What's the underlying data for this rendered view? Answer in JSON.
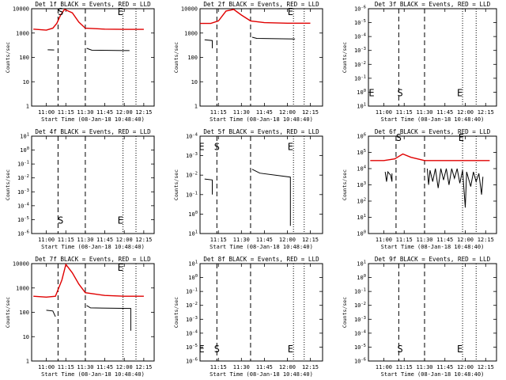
{
  "chart_data": [
    {
      "type": "line",
      "title": "Det 1f BLACK = Events, RED = LLD",
      "ylabel": "Counts/sec",
      "xlabel": "Start Time (08-Jan-18 10:48:40)",
      "scale": "log",
      "yticks": [
        "1",
        "10",
        "100",
        "1000",
        "10000"
      ],
      "ylim": [
        1,
        15000
      ],
      "xticks": [
        "11:00",
        "11:15",
        "11:30",
        "11:45",
        "12:00",
        "12:15"
      ],
      "xlim": [
        "10:48:40",
        "12:23:00"
      ],
      "dash_lines": [
        "11:09",
        "11:30"
      ],
      "dot_lines": [
        "11:59",
        "12:09"
      ],
      "markers": [
        {
          "text": "S",
          "x": "11:11",
          "y": 12000
        },
        {
          "text": "E",
          "x": "11:57",
          "y": 12000
        }
      ],
      "series": [
        {
          "name": "RED",
          "color": "#e00000",
          "points": [
            [
              "10:50",
              2000
            ],
            [
              "11:00",
              1800
            ],
            [
              "11:05",
              2200
            ],
            [
              "11:08",
              3500
            ],
            [
              "11:11",
              8000
            ],
            [
              "11:14",
              14000
            ],
            [
              "11:20",
              10000
            ],
            [
              "11:25",
              4000
            ],
            [
              "11:30",
              2200
            ],
            [
              "11:45",
              2000
            ],
            [
              "12:00",
              1950
            ],
            [
              "12:15",
              1950
            ]
          ]
        },
        {
          "name": "BLACK",
          "color": "#000000",
          "segments": [
            [
              [
                "11:01",
                260
              ],
              [
                "11:06",
                255
              ]
            ],
            [
              [
                "11:31",
                300
              ],
              [
                "11:35",
                250
              ],
              [
                "12:00",
                240
              ],
              [
                "12:04",
                240
              ]
            ]
          ]
        }
      ]
    },
    {
      "type": "line",
      "title": "Det 2f BLACK = Events, RED = LLD",
      "ylabel": "Counts/sec",
      "xlabel": "Start Time (08-Jan-18 10:48:40)",
      "scale": "log",
      "yticks": [
        "1",
        "10",
        "100",
        "1000",
        "10000"
      ],
      "ylim": [
        1,
        15000
      ],
      "xticks": [
        "11:15",
        "11:30",
        "11:45",
        "12:00",
        "12:15"
      ],
      "xlim": [
        "11:03",
        "12:23:00"
      ],
      "dash_lines": [
        "11:14",
        "11:36"
      ],
      "dot_lines": [
        "12:04",
        "12:11"
      ],
      "markers": [
        {
          "text": "E",
          "x": "12:02",
          "y": 12000
        }
      ],
      "series": [
        {
          "name": "RED",
          "color": "#e00000",
          "points": [
            [
              "11:03",
              3500
            ],
            [
              "11:10",
              3500
            ],
            [
              "11:15",
              4500
            ],
            [
              "11:20",
              12000
            ],
            [
              "11:25",
              14000
            ],
            [
              "11:30",
              8000
            ],
            [
              "11:36",
              4500
            ],
            [
              "11:45",
              3800
            ],
            [
              "12:00",
              3600
            ],
            [
              "12:15",
              3600
            ]
          ]
        },
        {
          "name": "BLACK",
          "color": "#000000",
          "segments": [
            [
              [
                "11:06",
                700
              ],
              [
                "11:11",
                650
              ],
              [
                "11:11",
                300
              ]
            ],
            [
              [
                "11:37",
                900
              ],
              [
                "11:40",
                800
              ],
              [
                "12:05",
                750
              ]
            ]
          ]
        }
      ]
    },
    {
      "type": "line",
      "title": "Det 3f BLACK = Events, RED = LLD",
      "ylabel": "Counts/sec",
      "xlabel": "Start Time (08-Jan-18 10:48:40)",
      "scale": "log",
      "yticks": [
        "10^1",
        "10^0",
        "10^-1",
        "10^-2",
        "10^-3",
        "10^-4",
        "10^-5",
        "10^-6"
      ],
      "ylim": [
        -6,
        1
      ],
      "xticks": [
        "11:00",
        "11:15",
        "11:30",
        "11:45",
        "12:00",
        "12:15"
      ],
      "xlim": [
        "10:48:40",
        "12:23:00"
      ],
      "dash_lines": [
        "11:11",
        "11:30"
      ],
      "dot_lines": [
        "11:58",
        "12:08"
      ],
      "markers": [
        {
          "text": "E",
          "x": "10:51",
          "y": -5
        },
        {
          "text": "S",
          "x": "11:12",
          "y": -5
        },
        {
          "text": "E",
          "x": "11:56",
          "y": -5
        }
      ],
      "series": []
    },
    {
      "type": "line",
      "title": "Det 4f BLACK = Events, RED = LLD",
      "ylabel": "Counts/sec",
      "xlabel": "Start Time (08-Jan-18 10:48:40)",
      "scale": "log",
      "yticks": [
        "10^-6",
        "10^-5",
        "10^-4",
        "10^-3",
        "10^-2",
        "10^-1",
        "10^0",
        "10^1"
      ],
      "ylim": [
        -6,
        1
      ],
      "xticks": [
        "11:00",
        "11:15",
        "11:30",
        "11:45",
        "12:00",
        "12:15"
      ],
      "xlim": [
        "10:48:40",
        "12:23:00"
      ],
      "dash_lines": [
        "11:09",
        "11:30"
      ],
      "dot_lines": [
        "11:59",
        "12:09"
      ],
      "markers": [
        {
          "text": "S",
          "x": "11:11",
          "y": -5
        },
        {
          "text": "E",
          "x": "11:57",
          "y": -5
        }
      ],
      "series": []
    },
    {
      "type": "line",
      "title": "Det 5f BLACK = Events, RED = LLD",
      "ylabel": "Counts/sec",
      "xlabel": "Start Time (08-Jan-18 10:48:40)",
      "scale": "log",
      "yticks": [
        "10^1",
        "10^0",
        "10^-1",
        "10^-2",
        "10^-3",
        "10^-4"
      ],
      "ylim": [
        -4,
        1
      ],
      "xticks": [
        "11:15",
        "11:30",
        "11:45",
        "12:00",
        "12:15"
      ],
      "xlim": [
        "11:03",
        "12:23:00"
      ],
      "dash_lines": [
        "11:14",
        "11:36"
      ],
      "dot_lines": [
        "12:04",
        "12:11"
      ],
      "markers": [
        {
          "text": "E",
          "x": "11:04",
          "y": 0.5
        },
        {
          "text": "S",
          "x": "11:14",
          "y": 0.5
        },
        {
          "text": "E",
          "x": "12:02",
          "y": 0.5
        }
      ],
      "series": [
        {
          "name": "BLACK",
          "color": "#000000",
          "segments": [
            [
              [
                "11:06",
                -1.2
              ],
              [
                "11:11",
                -1.25
              ],
              [
                "11:11",
                -2.0
              ]
            ],
            [
              [
                "11:37",
                -0.7
              ],
              [
                "11:42",
                -0.9
              ],
              [
                "12:02",
                -1.1
              ],
              [
                "12:02",
                -3.6
              ]
            ]
          ]
        }
      ]
    },
    {
      "type": "line",
      "title": "Det 6f BLACK = Events, RED = LLD",
      "ylabel": "Counts/sec",
      "xlabel": "Start Time (08-Jan-18 10:48:40)",
      "scale": "log",
      "yticks": [
        "10^0",
        "10^1",
        "10^2",
        "10^3",
        "10^4",
        "10^5",
        "10^6"
      ],
      "ylim": [
        0,
        6
      ],
      "xticks": [
        "11:00",
        "11:15",
        "11:30",
        "11:45",
        "12:00",
        "12:15"
      ],
      "xlim": [
        "10:48:40",
        "12:23:00"
      ],
      "dash_lines": [
        "11:09",
        "11:30"
      ],
      "dot_lines": [
        "11:58",
        "12:08"
      ],
      "markers": [
        {
          "text": "S",
          "x": "11:11",
          "y": 5.95
        },
        {
          "text": "E",
          "x": "11:57",
          "y": 5.95
        }
      ],
      "series": [
        {
          "name": "RED",
          "color": "#e00000",
          "points": [
            [
              "10:50",
              4.5
            ],
            [
              "11:00",
              4.5
            ],
            [
              "11:08",
              4.6
            ],
            [
              "11:14",
              4.9
            ],
            [
              "11:20",
              4.7
            ],
            [
              "11:30",
              4.5
            ],
            [
              "12:00",
              4.5
            ],
            [
              "12:18",
              4.5
            ]
          ]
        },
        {
          "name": "BLACK",
          "color": "#000000",
          "segments": [
            [
              [
                "11:01",
                3.8
              ],
              [
                "11:02",
                3.2
              ],
              [
                "11:03",
                3.8
              ],
              [
                "11:05",
                3.6
              ],
              [
                "11:06",
                3.2
              ],
              [
                "11:06",
                3.7
              ]
            ],
            [
              [
                "11:32",
                4.0
              ],
              [
                "11:33",
                3.0
              ],
              [
                "11:34",
                3.9
              ],
              [
                "11:36",
                3.2
              ],
              [
                "11:38",
                4.0
              ],
              [
                "11:40",
                2.8
              ],
              [
                "11:42",
                4.0
              ],
              [
                "11:44",
                3.3
              ],
              [
                "11:46",
                4.0
              ],
              [
                "11:48",
                3.0
              ],
              [
                "11:50",
                4.0
              ],
              [
                "11:52",
                3.4
              ],
              [
                "11:54",
                4.0
              ],
              [
                "11:56",
                3.1
              ],
              [
                "11:58",
                3.9
              ],
              [
                "12:00",
                1.6
              ],
              [
                "12:01",
                3.8
              ],
              [
                "12:04",
                2.9
              ],
              [
                "12:06",
                3.8
              ],
              [
                "12:08",
                3.2
              ],
              [
                "12:10",
                3.7
              ],
              [
                "12:12",
                2.4
              ],
              [
                "12:13",
                3.5
              ]
            ]
          ]
        }
      ]
    },
    {
      "type": "line",
      "title": "Det 7f BLACK = Events, RED = LLD",
      "ylabel": "Counts/sec",
      "xlabel": "Start Time (08-Jan-18 10:48:40)",
      "scale": "log",
      "yticks": [
        "1",
        "10",
        "100",
        "1000",
        "10000"
      ],
      "ylim": [
        1,
        15000
      ],
      "xticks": [
        "11:00",
        "11:15",
        "11:30",
        "11:45",
        "12:00",
        "12:15"
      ],
      "xlim": [
        "10:48:40",
        "12:23:00"
      ],
      "dash_lines": [
        "11:09",
        "11:30"
      ],
      "dot_lines": [
        "11:59",
        "12:09"
      ],
      "markers": [
        {
          "text": "E",
          "x": "11:57",
          "y": 11000
        }
      ],
      "series": [
        {
          "name": "RED",
          "color": "#e00000",
          "points": [
            [
              "10:50",
              600
            ],
            [
              "11:00",
              550
            ],
            [
              "11:07",
              600
            ],
            [
              "11:12",
              3000
            ],
            [
              "11:15",
              14000
            ],
            [
              "11:20",
              6000
            ],
            [
              "11:25",
              2000
            ],
            [
              "11:30",
              850
            ],
            [
              "11:45",
              650
            ],
            [
              "12:00",
              600
            ],
            [
              "12:15",
              600
            ]
          ]
        },
        {
          "name": "BLACK",
          "color": "#000000",
          "segments": [
            [
              [
                "11:00",
                150
              ],
              [
                "11:05",
                140
              ],
              [
                "11:07",
                80
              ]
            ],
            [
              [
                "11:31",
                240
              ],
              [
                "11:34",
                190
              ],
              [
                "12:05",
                180
              ],
              [
                "12:05",
                20
              ]
            ]
          ]
        }
      ]
    },
    {
      "type": "line",
      "title": "Det 8f BLACK = Events, RED = LLD",
      "ylabel": "Counts/sec",
      "xlabel": "Start Time (08-Jan-18 10:48:40)",
      "scale": "log",
      "yticks": [
        "10^-6",
        "10^-5",
        "10^-4",
        "10^-3",
        "10^-2",
        "10^-1",
        "10^0",
        "10^1"
      ],
      "ylim": [
        -6,
        1
      ],
      "xticks": [
        "11:15",
        "11:30",
        "11:45",
        "12:00",
        "12:15"
      ],
      "xlim": [
        "11:03",
        "12:23:00"
      ],
      "dash_lines": [
        "11:14",
        "11:36"
      ],
      "dot_lines": [
        "12:04",
        "12:11"
      ],
      "markers": [
        {
          "text": "E",
          "x": "11:04",
          "y": -5.1
        },
        {
          "text": "S",
          "x": "11:14",
          "y": -5.1
        },
        {
          "text": "E",
          "x": "12:02",
          "y": -5.1
        }
      ],
      "series": []
    },
    {
      "type": "line",
      "title": "Det 9f BLACK = Events, RED = LLD",
      "ylabel": "Counts/sec",
      "xlabel": "Start Time (08-Jan-18 10:48:40)",
      "scale": "log",
      "yticks": [
        "10^-6",
        "10^-5",
        "10^-4",
        "10^-3",
        "10^-2",
        "10^-1",
        "10^0",
        "10^1"
      ],
      "ylim": [
        -6,
        1
      ],
      "xticks": [
        "11:00",
        "11:15",
        "11:30",
        "11:45",
        "12:00",
        "12:15"
      ],
      "xlim": [
        "10:48:40",
        "12:23:00"
      ],
      "dash_lines": [
        "11:11",
        "11:30"
      ],
      "dot_lines": [
        "11:58",
        "12:08"
      ],
      "markers": [
        {
          "text": "S",
          "x": "11:12",
          "y": -5.1
        },
        {
          "text": "E",
          "x": "11:56",
          "y": -5.1
        }
      ],
      "series": []
    }
  ]
}
